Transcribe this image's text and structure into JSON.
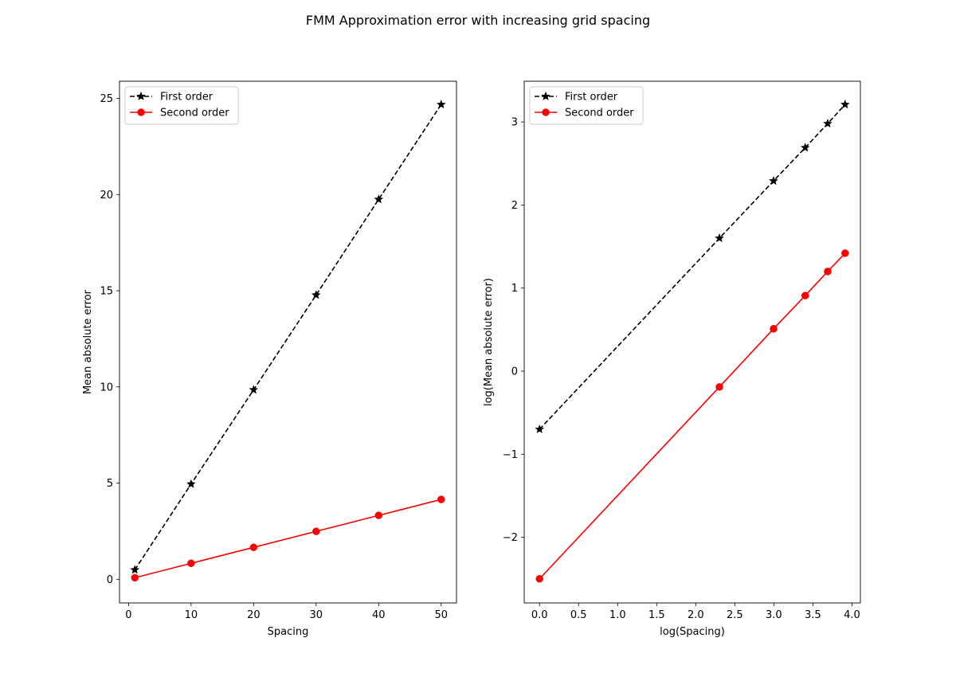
{
  "figure": {
    "title": "FMM Approximation error with increasing grid spacing"
  },
  "chart_data": [
    {
      "type": "line",
      "xlabel": "Spacing",
      "ylabel": "Mean absolute error",
      "xlim": [
        -1.45,
        52.45
      ],
      "ylim": [
        -1.23,
        25.89
      ],
      "xticks": [
        0,
        10,
        20,
        30,
        40,
        50
      ],
      "xtick_labels": [
        "0",
        "10",
        "20",
        "30",
        "40",
        "50"
      ],
      "yticks": [
        0,
        5,
        10,
        15,
        20,
        25
      ],
      "ytick_labels": [
        "0",
        "5",
        "10",
        "15",
        "20",
        "25"
      ],
      "legend_position": "upper left",
      "series": [
        {
          "name": "First order",
          "color": "#000000",
          "line_style": "dashed",
          "marker": "star",
          "x": [
            1,
            10,
            20,
            30,
            40,
            50
          ],
          "y": [
            0.49,
            4.95,
            9.85,
            14.78,
            19.75,
            24.68
          ]
        },
        {
          "name": "Second order",
          "color": "#ff0000",
          "line_style": "solid",
          "marker": "circle",
          "x": [
            1,
            10,
            20,
            30,
            40,
            50
          ],
          "y": [
            0.08,
            0.83,
            1.66,
            2.49,
            3.32,
            4.15
          ]
        }
      ]
    },
    {
      "type": "line",
      "xlabel": "log(Spacing)",
      "ylabel": "log(Mean absolute error)",
      "xlim": [
        -0.196,
        4.108
      ],
      "ylim": [
        -2.79,
        3.49
      ],
      "xticks": [
        0.0,
        0.5,
        1.0,
        1.5,
        2.0,
        2.5,
        3.0,
        3.5,
        4.0
      ],
      "xtick_labels": [
        "0.0",
        "0.5",
        "1.0",
        "1.5",
        "2.0",
        "2.5",
        "3.0",
        "3.5",
        "4.0"
      ],
      "yticks": [
        -2,
        -1,
        0,
        1,
        2,
        3
      ],
      "ytick_labels": [
        "−2",
        "−1",
        "0",
        "1",
        "2",
        "3"
      ],
      "legend_position": "upper left",
      "series": [
        {
          "name": "First order",
          "color": "#000000",
          "line_style": "dashed",
          "marker": "star",
          "x": [
            0.0,
            2.303,
            2.996,
            3.401,
            3.689,
            3.912
          ],
          "y": [
            -0.7,
            1.6,
            2.29,
            2.69,
            2.98,
            3.21
          ]
        },
        {
          "name": "Second order",
          "color": "#ff0000",
          "line_style": "solid",
          "marker": "circle",
          "x": [
            0.0,
            2.303,
            2.996,
            3.401,
            3.689,
            3.912
          ],
          "y": [
            -2.5,
            -0.19,
            0.51,
            0.91,
            1.2,
            1.42
          ]
        }
      ]
    }
  ]
}
